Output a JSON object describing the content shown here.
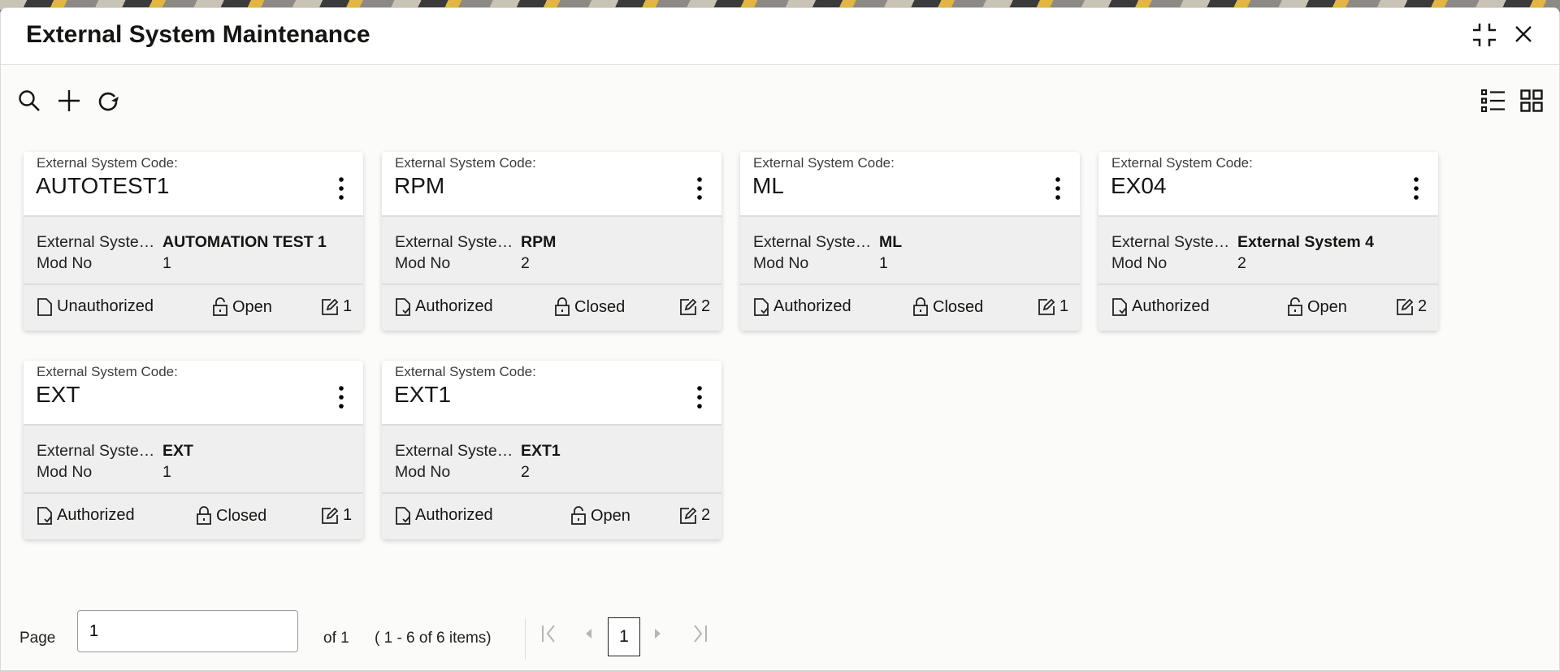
{
  "header": {
    "title": "External System Maintenance",
    "compress_icon": "compress-icon",
    "close_icon": "close-icon"
  },
  "toolbar": {
    "icons": [
      "search-icon",
      "add-icon",
      "refresh-icon"
    ],
    "view_icons": [
      "list-view-icon",
      "grid-view-icon"
    ]
  },
  "card_labels": {
    "code_label": "External System Code:",
    "desc_label": "External Syste…",
    "mod_label": "Mod No"
  },
  "cards": [
    {
      "code": "AUTOTEST1",
      "desc": "AUTOMATION TEST 1",
      "mod": "1",
      "auth": "Unauthorized",
      "status": "Open",
      "edits": "1"
    },
    {
      "code": "RPM",
      "desc": "RPM",
      "mod": "2",
      "auth": "Authorized",
      "status": "Closed",
      "edits": "2"
    },
    {
      "code": "ML",
      "desc": "ML",
      "mod": "1",
      "auth": "Authorized",
      "status": "Closed",
      "edits": "1"
    },
    {
      "code": "EX04",
      "desc": "External System 4",
      "mod": "2",
      "auth": "Authorized",
      "status": "Open",
      "edits": "2"
    },
    {
      "code": "EXT",
      "desc": "EXT",
      "mod": "1",
      "auth": "Authorized",
      "status": "Closed",
      "edits": "1"
    },
    {
      "code": "EXT1",
      "desc": "EXT1",
      "mod": "2",
      "auth": "Authorized",
      "status": "Open",
      "edits": "2"
    }
  ],
  "pagination": {
    "page_label": "Page",
    "page_value": "1",
    "of_text": "of 1",
    "items_text": "( 1 - 6 of 6 items)",
    "current_page": "1"
  }
}
